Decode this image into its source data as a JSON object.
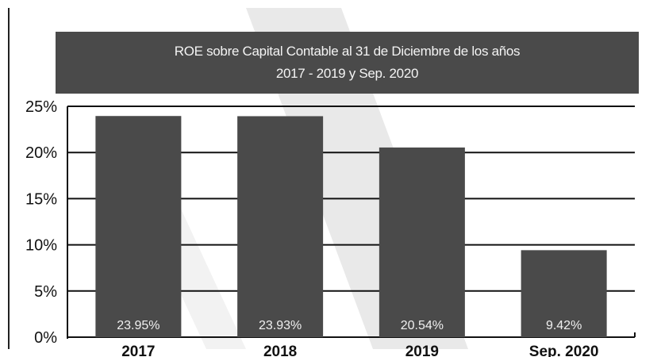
{
  "chart_data": {
    "type": "bar",
    "title_lines": [
      "ROE sobre Capital Contable al 31 de Diciembre de los años",
      "2017 - 2019 y Sep. 2020"
    ],
    "categories": [
      "2017",
      "2018",
      "2019",
      "Sep. 2020"
    ],
    "values": [
      23.95,
      23.93,
      20.54,
      9.42
    ],
    "data_labels": [
      "23.95%",
      "23.93%",
      "20.54%",
      "9.42%"
    ],
    "y_ticks": [
      0,
      5,
      10,
      15,
      20,
      25
    ],
    "y_tick_labels": [
      "0%",
      "5%",
      "10%",
      "15%",
      "20%",
      "25%"
    ],
    "ylim": [
      0,
      25
    ],
    "grid": true,
    "legend": "none",
    "colors": {
      "bar": "#4a4a4a",
      "title_band": "#4a4a4a",
      "gridline": "#111111",
      "background_stripe": "#e9e9e9"
    }
  }
}
